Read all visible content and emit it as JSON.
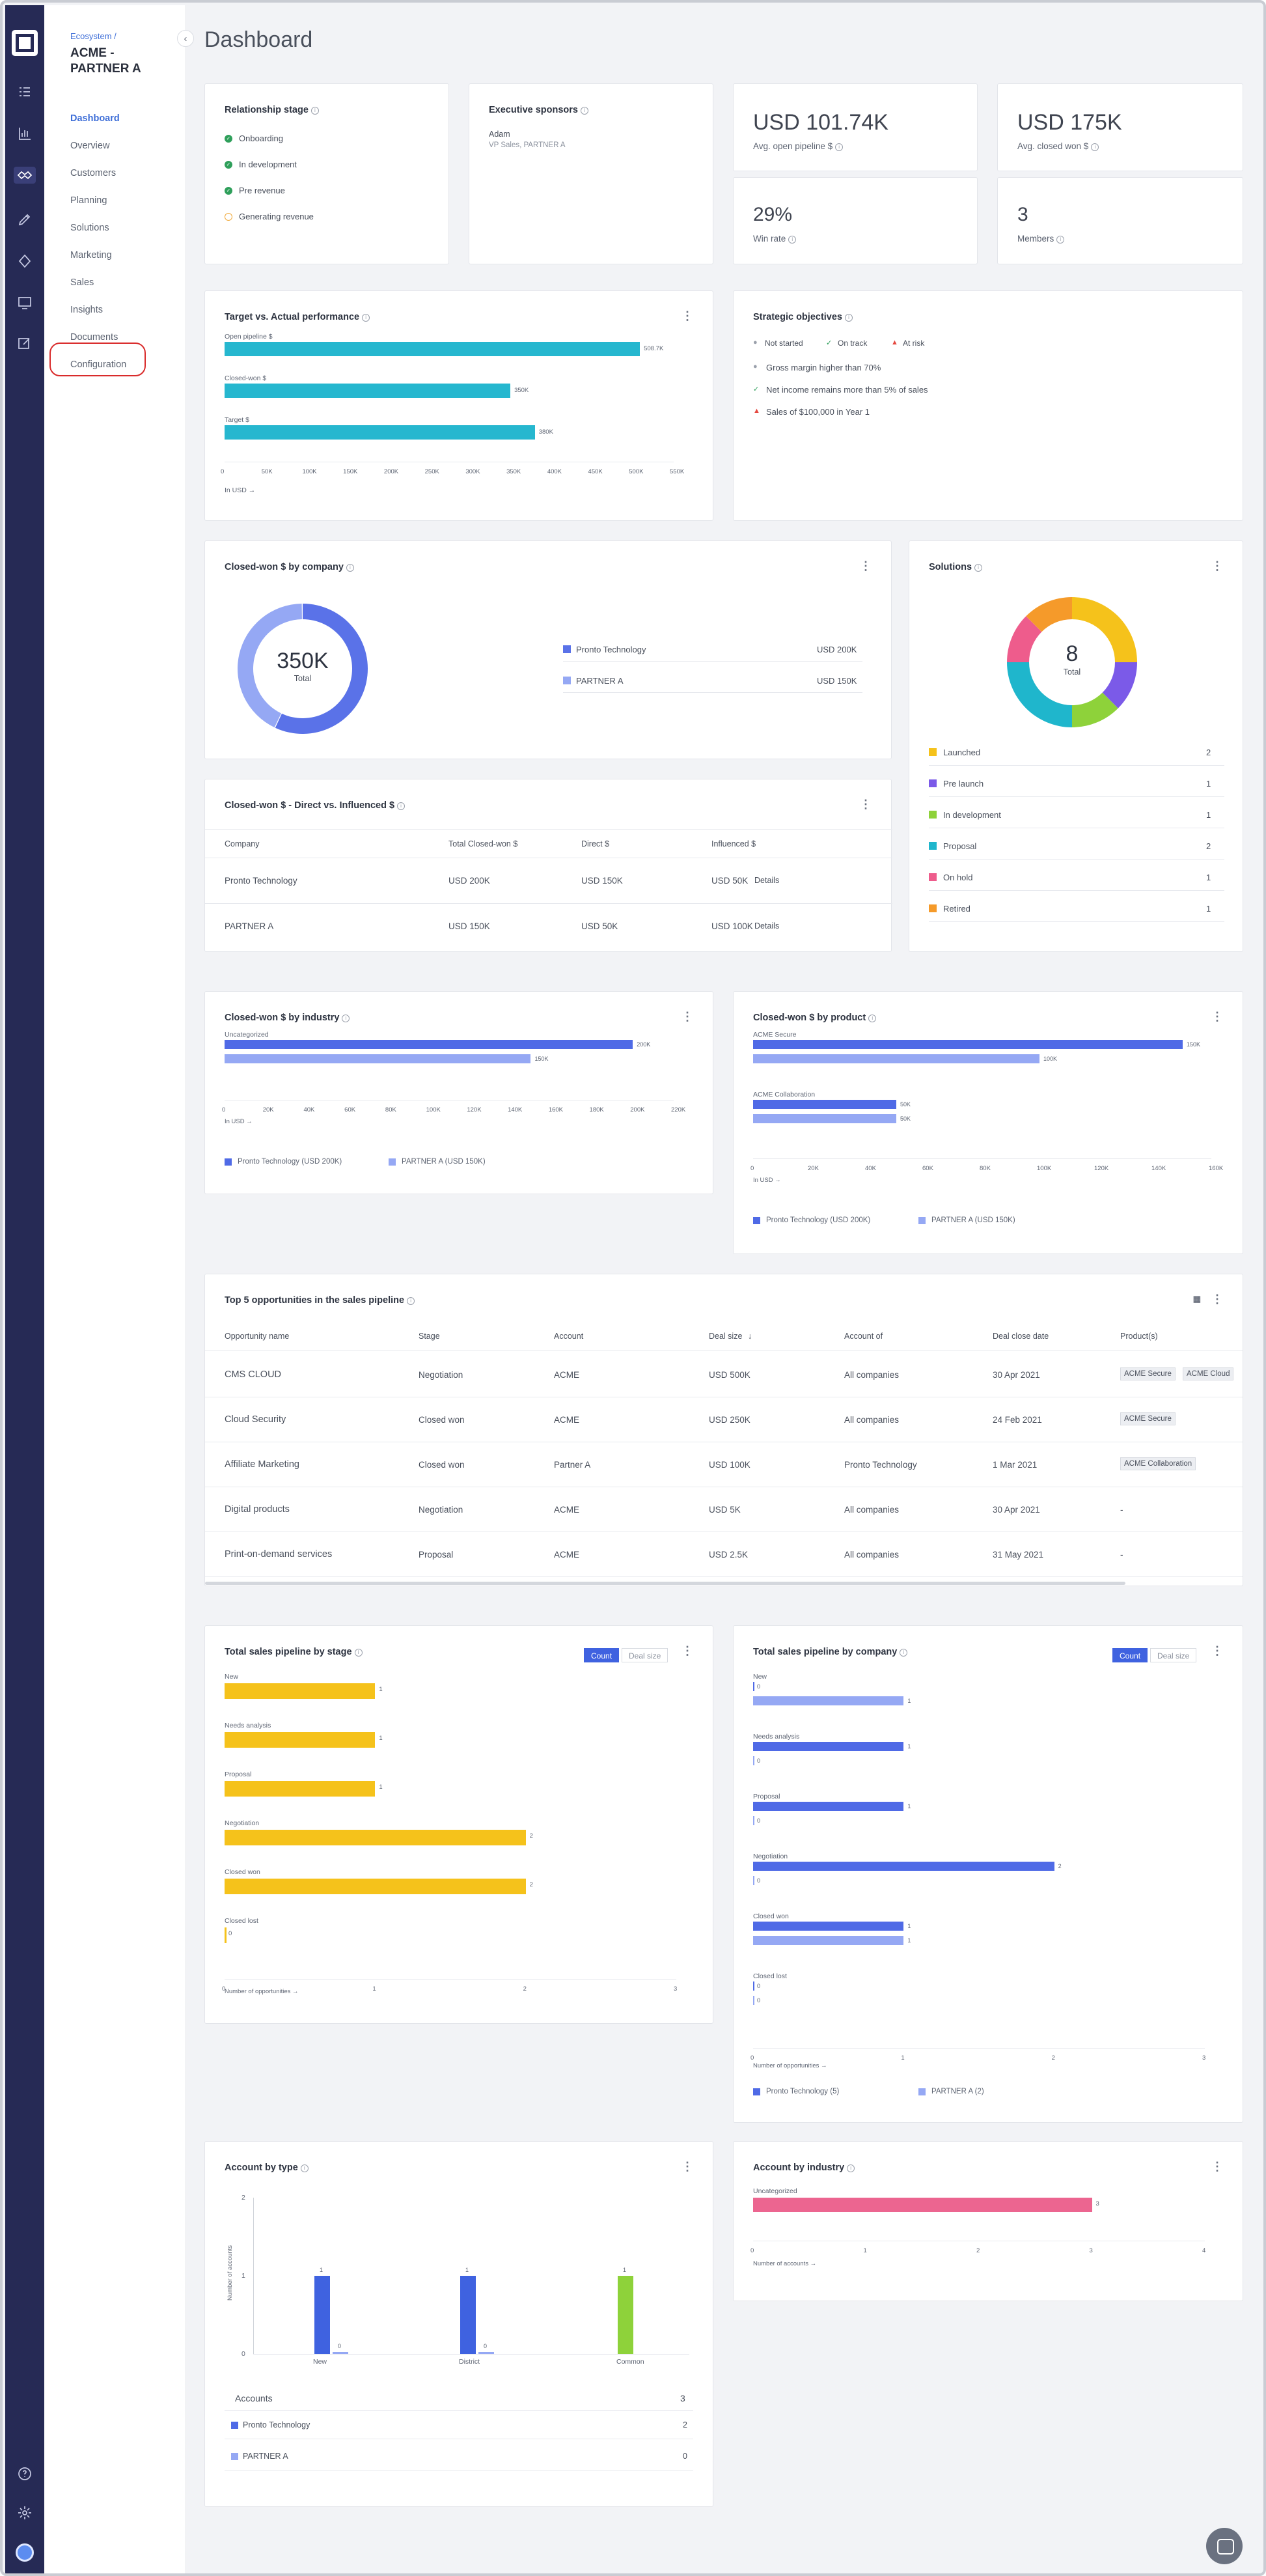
{
  "sidebar": {
    "breadcrumb": "Ecosystem /",
    "org_name": "ACME - PARTNER A",
    "items": [
      "Dashboard",
      "Overview",
      "Customers",
      "Planning",
      "Solutions",
      "Marketing",
      "Sales",
      "Insights",
      "Documents",
      "Configuration"
    ],
    "active": "Dashboard",
    "highlighted": "Configuration",
    "highlight_color": "#d92b2b"
  },
  "rail": {
    "icons": [
      "app-logo",
      "list-icon",
      "bar-chart-icon",
      "handshake-icon",
      "pen-icon",
      "badge-icon",
      "monitor-icon",
      "edit-icon",
      "help-icon",
      "gear-icon",
      "avatar"
    ]
  },
  "page": {
    "title": "Dashboard"
  },
  "relationship": {
    "title": "Relationship stage",
    "stages": [
      {
        "label": "Onboarding",
        "state": "done"
      },
      {
        "label": "In development",
        "state": "done"
      },
      {
        "label": "Pre revenue",
        "state": "done"
      },
      {
        "label": "Generating revenue",
        "state": "pending"
      }
    ]
  },
  "sponsors": {
    "title": "Executive sponsors",
    "name": "Adam",
    "role": "VP Sales, PARTNER A"
  },
  "kpis": {
    "open_pipeline": {
      "value": "USD 101.74K",
      "label": "Avg. open pipeline $"
    },
    "closed_won": {
      "value": "USD 175K",
      "label": "Avg. closed won $"
    },
    "win_rate": {
      "value": "29%",
      "label": "Win rate"
    },
    "members": {
      "value": "3",
      "label": "Members"
    }
  },
  "target": {
    "title": "Target vs. Actual performance",
    "footnote": "In USD",
    "chart_data": {
      "type": "bar",
      "orientation": "horizontal",
      "categories": [
        "Open pipeline $",
        "Closed-won $",
        "Target $"
      ],
      "values": [
        508.7,
        350,
        380
      ],
      "value_labels": [
        "508.7K",
        "350K",
        "380K"
      ],
      "xlim": [
        0,
        550
      ],
      "ticks": [
        "0",
        "50K",
        "100K",
        "150K",
        "200K",
        "250K",
        "300K",
        "350K",
        "400K",
        "450K",
        "500K",
        "550K"
      ],
      "color": "#26b7cf"
    }
  },
  "objectives": {
    "title": "Strategic objectives",
    "legend": [
      {
        "label": "Not started",
        "icon": "gray-dot"
      },
      {
        "label": "On track",
        "icon": "green-check"
      },
      {
        "label": "At risk",
        "icon": "red-triangle"
      }
    ],
    "items": [
      {
        "label": "Gross margin higher than 70%",
        "icon": "gray-dot"
      },
      {
        "label": "Net income remains more than 5% of sales",
        "icon": "green-check"
      },
      {
        "label": "Sales of $100,000 in Year 1",
        "icon": "red-triangle"
      }
    ]
  },
  "cw_company": {
    "title": "Closed-won $ by company",
    "center_value": "350K",
    "center_label": "Total",
    "chart_data": {
      "type": "pie",
      "categories": [
        "Pronto Technology",
        "PARTNER A"
      ],
      "values": [
        200,
        150
      ],
      "value_labels": [
        "USD 200K",
        "USD 150K"
      ],
      "colors": [
        "#5a72e8",
        "#95a8f4"
      ]
    }
  },
  "solutions": {
    "title": "Solutions",
    "center_value": "8",
    "center_label": "Total",
    "chart_data": {
      "type": "pie",
      "categories": [
        "Launched",
        "Pre launch",
        "In development",
        "Proposal",
        "On hold",
        "Retired"
      ],
      "values": [
        2,
        1,
        1,
        2,
        1,
        1
      ],
      "colors": [
        "#f5c21b",
        "#7b5ae8",
        "#8ed23a",
        "#1fb6cc",
        "#ee5c8c",
        "#f59a2a"
      ]
    }
  },
  "direct": {
    "title": "Closed-won $ - Direct vs. Influenced $",
    "headers": [
      "Company",
      "Total Closed-won $",
      "Direct $",
      "Influenced $"
    ],
    "rows": [
      [
        "Pronto Technology",
        "USD 200K",
        "USD 150K",
        "USD 50K"
      ],
      [
        "PARTNER A",
        "USD 150K",
        "USD 50K",
        "USD 100K"
      ]
    ],
    "details_label": "Details"
  },
  "industry": {
    "title": "Closed-won $ by industry",
    "footnote": "In USD",
    "chart_data": {
      "type": "bar",
      "orientation": "horizontal",
      "categories": [
        "Uncategorized"
      ],
      "xlim": [
        0,
        220
      ],
      "ticks": [
        "0",
        "20K",
        "40K",
        "60K",
        "80K",
        "100K",
        "120K",
        "140K",
        "160K",
        "180K",
        "200K",
        "220K"
      ],
      "series": [
        {
          "name": "Pronto Technology (USD 200K)",
          "values": [
            200
          ],
          "labels": [
            "200K"
          ],
          "color": "#4f6ae6"
        },
        {
          "name": "PARTNER A (USD 150K)",
          "values": [
            150
          ],
          "labels": [
            "150K"
          ],
          "color": "#95a8f4"
        }
      ]
    }
  },
  "product": {
    "title": "Closed-won $ by product",
    "footnote": "In USD",
    "chart_data": {
      "type": "bar",
      "orientation": "horizontal",
      "categories": [
        "ACME Secure",
        "ACME Collaboration"
      ],
      "xlim": [
        0,
        160
      ],
      "ticks": [
        "0",
        "20K",
        "40K",
        "60K",
        "80K",
        "100K",
        "120K",
        "140K",
        "160K"
      ],
      "series": [
        {
          "name": "Pronto Technology (USD 200K)",
          "values": [
            150,
            50
          ],
          "labels": [
            "150K",
            "50K"
          ],
          "color": "#4f6ae6"
        },
        {
          "name": "PARTNER A (USD 150K)",
          "values": [
            100,
            50
          ],
          "labels": [
            "100K",
            "50K"
          ],
          "color": "#95a8f4"
        }
      ]
    }
  },
  "top5": {
    "title": "Top 5 opportunities in the sales pipeline",
    "headers": [
      "Opportunity name",
      "Stage",
      "Account",
      "Deal size",
      "Account of",
      "Deal close date",
      "Product(s)"
    ],
    "rows": [
      {
        "name": "CMS CLOUD",
        "stage": "Negotiation",
        "account": "ACME",
        "deal": "USD 500K",
        "of": "All companies",
        "date": "30 Apr 2021",
        "products": [
          "ACME Secure",
          "ACME Cloud"
        ]
      },
      {
        "name": "Cloud Security",
        "stage": "Closed won",
        "account": "ACME",
        "deal": "USD 250K",
        "of": "All companies",
        "date": "24 Feb 2021",
        "products": [
          "ACME Secure"
        ]
      },
      {
        "name": "Affiliate Marketing",
        "stage": "Closed won",
        "account": "Partner A",
        "deal": "USD 100K",
        "of": "Pronto Technology",
        "date": "1 Mar 2021",
        "products": [
          "ACME Collaboration"
        ]
      },
      {
        "name": "Digital products",
        "stage": "Negotiation",
        "account": "ACME",
        "deal": "USD 5K",
        "of": "All companies",
        "date": "30 Apr 2021",
        "products": [
          "-"
        ]
      },
      {
        "name": "Print-on-demand services",
        "stage": "Proposal",
        "account": "ACME",
        "deal": "USD 2.5K",
        "of": "All companies",
        "date": "31 May 2021",
        "products": [
          "-"
        ]
      }
    ]
  },
  "pipe_stage": {
    "title": "Total sales pipeline by stage",
    "toggle": [
      "Count",
      "Deal size"
    ],
    "footnote": "Number of opportunities",
    "chart_data": {
      "type": "bar",
      "orientation": "horizontal",
      "categories": [
        "New",
        "Needs analysis",
        "Proposal",
        "Negotiation",
        "Closed won",
        "Closed lost"
      ],
      "values": [
        1,
        1,
        1,
        2,
        2,
        0
      ],
      "xlim": [
        0,
        3
      ],
      "ticks": [
        "0",
        "1",
        "2",
        "3"
      ],
      "color": "#f5c21b"
    }
  },
  "pipe_company": {
    "title": "Total sales pipeline by company",
    "toggle": [
      "Count",
      "Deal size"
    ],
    "footnote": "Number of opportunities",
    "chart_data": {
      "type": "bar",
      "orientation": "horizontal",
      "categories": [
        "New",
        "Needs analysis",
        "Proposal",
        "Negotiation",
        "Closed won",
        "Closed lost"
      ],
      "xlim": [
        0,
        3
      ],
      "ticks": [
        "0",
        "1",
        "2",
        "3"
      ],
      "series": [
        {
          "name": "Pronto Technology (5)",
          "values": [
            0,
            1,
            1,
            2,
            1,
            0
          ],
          "color": "#4f6ae6"
        },
        {
          "name": "PARTNER A (2)",
          "values": [
            1,
            0,
            0,
            0,
            1,
            0
          ],
          "color": "#95a8f4"
        }
      ]
    }
  },
  "acc_type": {
    "title": "Account by type",
    "ylabel": "Number of accounts",
    "chart_data": {
      "type": "bar",
      "categories": [
        "New",
        "District",
        "Common"
      ],
      "ylim": [
        0,
        2
      ],
      "yticks": [
        "0",
        "1",
        "2"
      ],
      "series": [
        {
          "name": "Pronto Technology",
          "values": [
            1,
            1,
            1
          ],
          "colors": [
            "#3f62e0",
            "#3f62e0",
            "#8ed23a"
          ]
        },
        {
          "name": "PARTNER A",
          "values": [
            0,
            0,
            null
          ],
          "color": "#95a8f4"
        }
      ]
    },
    "summary": {
      "label": "Accounts",
      "total": "3",
      "rows": [
        {
          "name": "Pronto Technology",
          "value": "2",
          "color": "#4f6ae6"
        },
        {
          "name": "PARTNER A",
          "value": "0",
          "color": "#95a8f4"
        }
      ]
    }
  },
  "acc_industry": {
    "title": "Account by industry",
    "footnote": "Number of accounts",
    "chart_data": {
      "type": "bar",
      "orientation": "horizontal",
      "categories": [
        "Uncategorized"
      ],
      "values": [
        3
      ],
      "xlim": [
        0,
        4
      ],
      "ticks": [
        "0",
        "1",
        "2",
        "3",
        "4"
      ],
      "color": "#ec6590"
    }
  }
}
